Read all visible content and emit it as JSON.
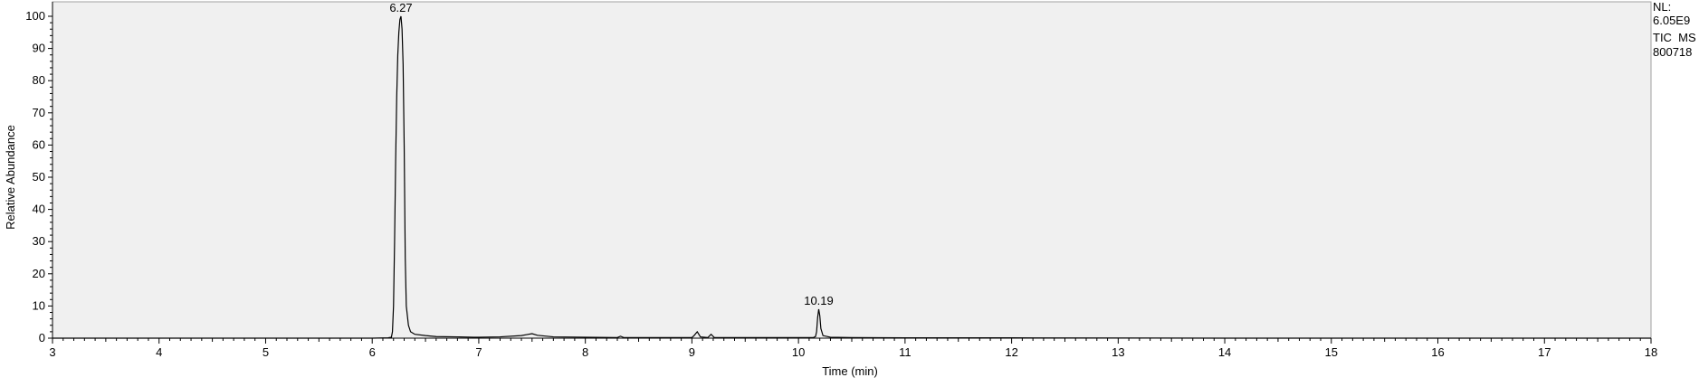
{
  "chart_data": {
    "type": "line",
    "xlabel": "Time (min)",
    "ylabel": "Relative Abundance",
    "xlim": [
      3,
      18
    ],
    "ylim": [
      0,
      100
    ],
    "x_ticks": [
      "3",
      "4",
      "5",
      "6",
      "7",
      "8",
      "9",
      "10",
      "11",
      "12",
      "13",
      "14",
      "15",
      "16",
      "17",
      "18"
    ],
    "y_ticks": [
      "0",
      "10",
      "20",
      "30",
      "40",
      "50",
      "60",
      "70",
      "80",
      "90",
      "100"
    ],
    "peak_labels": [
      {
        "x": 6.27,
        "y": 100,
        "text": "6.27"
      },
      {
        "x": 10.19,
        "y": 9,
        "text": "10.19"
      }
    ],
    "series": [
      {
        "x": [
          3.0,
          6.0,
          6.15,
          6.18,
          6.19,
          6.2,
          6.21,
          6.22,
          6.23,
          6.24,
          6.25,
          6.26,
          6.27,
          6.28,
          6.29,
          6.3,
          6.31,
          6.32,
          6.34,
          6.36,
          6.4,
          6.5,
          6.6,
          6.8,
          6.95,
          7.0,
          7.2,
          7.4,
          7.45,
          7.5,
          7.55,
          7.7,
          8.0,
          8.3,
          8.33,
          8.36,
          8.6,
          9.0,
          9.02,
          9.05,
          9.08,
          9.15,
          9.18,
          9.21,
          9.5,
          10.0,
          10.14,
          10.16,
          10.17,
          10.18,
          10.19,
          10.2,
          10.21,
          10.23,
          10.3,
          10.5,
          11.0,
          12.0,
          14.0,
          16.0,
          18.0
        ],
        "y": [
          0.0,
          0.0,
          0.1,
          0.3,
          2.0,
          10.0,
          30.0,
          55.0,
          75.0,
          88.0,
          95.0,
          99.0,
          100.0,
          96.0,
          85.0,
          60.0,
          25.0,
          10.0,
          4.0,
          2.0,
          1.2,
          0.8,
          0.5,
          0.4,
          0.3,
          0.3,
          0.4,
          0.8,
          1.1,
          1.4,
          0.9,
          0.4,
          0.3,
          0.2,
          0.6,
          0.2,
          0.2,
          0.2,
          0.8,
          2.0,
          0.4,
          0.2,
          1.2,
          0.2,
          0.2,
          0.2,
          0.2,
          0.5,
          2.0,
          6.5,
          9.0,
          7.0,
          3.0,
          0.8,
          0.3,
          0.2,
          0.1,
          0.1,
          0.0,
          0.0,
          0.0
        ]
      }
    ],
    "grid": false
  },
  "info": {
    "line1": "NL:",
    "line2": "6.05E9",
    "line3": "TIC  MS",
    "line4": "800718"
  },
  "colors": {
    "plot_background": "#f0f0f0",
    "trace": "#000000",
    "axis": "#000000"
  }
}
